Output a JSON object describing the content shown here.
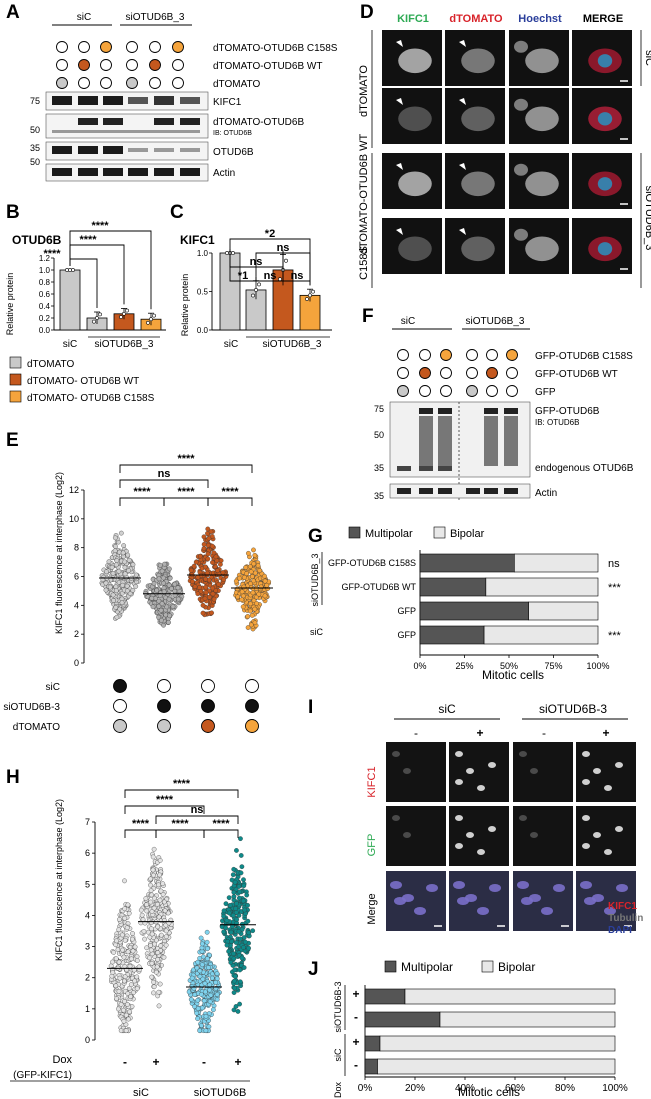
{
  "colors": {
    "grey": "#c9c9c9",
    "rust": "#c4581e",
    "orange": "#f5a43c",
    "multipolar": "#555555",
    "bipolar": "#e8e8e8",
    "kifc1_green": "#2eaa54",
    "dtomato_red": "#d8232a",
    "hoechst_blue": "#2b3f9b",
    "light_blue": "#7fd3ee",
    "teal": "#0e8a8a",
    "light": "#e3e3e3"
  },
  "panel_a": {
    "label": "A",
    "groups": [
      "siC",
      "siOTUD6B_3"
    ],
    "row_labels": [
      "dTOMATO-OTUD6B C158S",
      "dTOMATO-OTUD6B WT",
      "dTOMATO"
    ],
    "markers": [
      "75",
      "50",
      "35",
      "50"
    ],
    "band_labels": [
      "KIFC1",
      "dTOMATO-OTUD6B",
      "IB: OTUD6B",
      "OTUD6B",
      "Actin"
    ]
  },
  "panel_b": {
    "label": "B",
    "title": "OTUD6B",
    "ylabel": "Relative protein",
    "x_labels": [
      "siC",
      "siOTUD6B_3"
    ],
    "sig": [
      "****",
      "****",
      "****"
    ],
    "chart_data": {
      "type": "bar",
      "categories": [
        "dTOMATO siC",
        "dTOMATO siOTUD6B_3",
        "dTOMATO-OTUD6B WT siOTUD6B_3",
        "dTOMATO-OTUD6B C158S siOTUD6B_3"
      ],
      "values": [
        1.0,
        0.2,
        0.27,
        0.18
      ],
      "ylim": [
        0,
        1.2
      ],
      "yticks": [
        "0.0",
        "0.2",
        "0.4",
        "0.6",
        "0.8",
        "1.0",
        "1.2"
      ]
    }
  },
  "panel_c": {
    "label": "C",
    "title": "KIFC1",
    "ylabel": "Relative protein",
    "x_labels": [
      "siC",
      "siOTUD6B_3"
    ],
    "sig": [
      "*2",
      "ns",
      "ns",
      "*1",
      "ns",
      "ns"
    ],
    "chart_data": {
      "type": "bar",
      "categories": [
        "dTOMATO siC",
        "dTOMATO siOTUD6B_3",
        "dTOMATO-OTUD6B WT siOTUD6B_3",
        "dTOMATO-OTUD6B C158S siOTUD6B_3"
      ],
      "values": [
        1.0,
        0.52,
        0.78,
        0.45
      ],
      "ylim": [
        0,
        1.0
      ],
      "yticks": [
        "0.0",
        "0.5",
        "1.0"
      ]
    }
  },
  "legend_bc": [
    "dTOMATO",
    "dTOMATO- OTUD6B WT",
    "dTOMATO- OTUD6B C158S"
  ],
  "panel_d": {
    "label": "D",
    "columns": [
      "KIFC1",
      "dTOMATO",
      "Hoechst",
      "MERGE"
    ],
    "row_groups": [
      "dTOMATO",
      "dTOMATO-OTUD6B WT",
      "C158S"
    ],
    "side_labels": [
      "siC",
      "siOTUD6B_3"
    ]
  },
  "panel_e": {
    "label": "E",
    "ylabel": "KIFC1 fluorescence at interphase (Log2)",
    "row_labels": [
      "siC",
      "siOTUD6B-3",
      "dTOMATO"
    ],
    "sig": [
      "****",
      "ns",
      "****",
      "****",
      "****"
    ],
    "chart_data": {
      "type": "scatter",
      "categories": [
        "siC + dTOMATO",
        "siOTUD6B-3 + dTOMATO",
        "siOTUD6B-3 + dTOMATO-OTUD6B WT",
        "siOTUD6B-3 + dTOMATO-OTUD6B C158S"
      ],
      "medians": [
        5.9,
        4.8,
        6.1,
        5.2
      ],
      "ylim": [
        0,
        12
      ],
      "yticks": [
        "0",
        "2",
        "4",
        "6",
        "8",
        "10",
        "12"
      ]
    }
  },
  "panel_f": {
    "label": "F",
    "groups": [
      "siC",
      "siOTUD6B_3"
    ],
    "row_labels": [
      "GFP-OTUD6B C158S",
      "GFP-OTUD6B WT",
      "GFP"
    ],
    "markers": [
      "75",
      "50",
      "35",
      "35"
    ],
    "band_labels": [
      "GFP-OTUD6B",
      "IB: OTUD6B",
      "endogenous OTUD6B",
      "Actin"
    ]
  },
  "panel_g": {
    "label": "G",
    "legend": [
      "Multipolar",
      "Bipolar"
    ],
    "side_labels": [
      "siOTUD6B_3",
      "siC"
    ],
    "bar_labels": [
      "GFP-OTUD6B C158S",
      "GFP-OTUD6B WT",
      "GFP",
      "GFP"
    ],
    "sig": [
      "ns",
      "***"
    ],
    "xlabel": "Mitotic cells",
    "chart_data": {
      "type": "bar",
      "orientation": "horizontal",
      "categories": [
        "siOTUD6B_3 GFP-OTUD6B C158S",
        "siOTUD6B_3 GFP-OTUD6B WT",
        "siOTUD6B_3 GFP",
        "siC GFP"
      ],
      "series": [
        {
          "name": "Multipolar",
          "values": [
            53,
            37,
            61,
            36
          ]
        },
        {
          "name": "Bipolar",
          "values": [
            47,
            63,
            39,
            64
          ]
        }
      ],
      "xlim": [
        0,
        100
      ],
      "xticks": [
        "0%",
        "25%",
        "50%",
        "75%",
        "100%"
      ]
    }
  },
  "panel_h": {
    "label": "H",
    "ylabel": "KIFC1 fluorescence at interphase (Log2)",
    "xaxis_row": [
      "Dox",
      "(GFP-KIFC1)",
      "-",
      "+",
      "-",
      "+"
    ],
    "groups": [
      "siC",
      "siOTUD6B"
    ],
    "sig": [
      "****",
      "****",
      "ns",
      "****",
      "****",
      "****"
    ],
    "chart_data": {
      "type": "scatter",
      "categories": [
        "siC Dox -",
        "siC Dox +",
        "siOTUD6B Dox -",
        "siOTUD6B Dox +"
      ],
      "medians": [
        2.3,
        3.8,
        1.7,
        3.7
      ],
      "ylim": [
        0,
        7
      ],
      "yticks": [
        "0",
        "1",
        "2",
        "3",
        "4",
        "5",
        "6",
        "7"
      ]
    }
  },
  "panel_i": {
    "label": "I",
    "groups": [
      "siC",
      "siOTUD6B-3"
    ],
    "signs": [
      "-",
      "+",
      "-",
      "+"
    ],
    "row_labels": [
      "KIFC1",
      "GFP",
      "Merge"
    ],
    "legend": [
      "KIFC1",
      "Tubulin",
      "DAPI"
    ]
  },
  "panel_j": {
    "label": "J",
    "legend": [
      "Multipolar",
      "Bipolar"
    ],
    "side_labels": [
      "siOTUD6B-3",
      "siC",
      "Dox"
    ],
    "signs": [
      "+",
      "-",
      "+",
      "-"
    ],
    "xlabel": "Mitotic cells",
    "chart_data": {
      "type": "bar",
      "orientation": "horizontal",
      "categories": [
        "siOTUD6B-3 Dox +",
        "siOTUD6B-3 Dox -",
        "siC Dox +",
        "siC Dox -"
      ],
      "series": [
        {
          "name": "Multipolar",
          "values": [
            16,
            30,
            6,
            5
          ]
        },
        {
          "name": "Bipolar",
          "values": [
            84,
            70,
            94,
            95
          ]
        }
      ],
      "xlim": [
        0,
        100
      ],
      "xticks": [
        "0%",
        "20%",
        "40%",
        "60%",
        "80%",
        "100%"
      ]
    }
  }
}
